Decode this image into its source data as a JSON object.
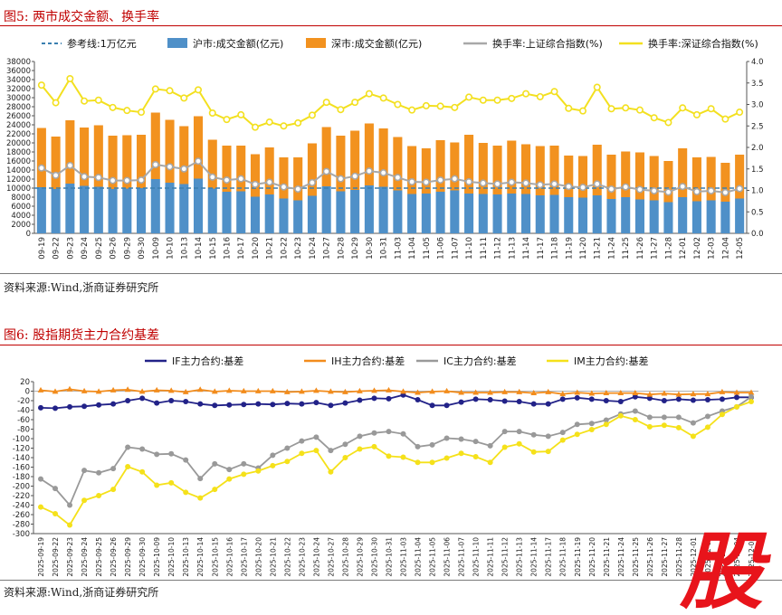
{
  "figure1": {
    "title": "图5:  两市成交金额、换手率",
    "source": "资料来源:Wind,浙商证券研究所"
  },
  "figure2": {
    "title": "图6:  股指期货主力合约基差",
    "source": "资料来源:Wind,浙商证券研究所"
  },
  "colors": {
    "sh_bar": "#4f90c8",
    "sz_bar": "#f2921f",
    "sh_turnover": "#a8a8a8",
    "sz_turnover": "#f3e01f",
    "ref_line": "#3a7fb0",
    "IF": "#222288",
    "IH": "#f28c1c",
    "IC": "#999999",
    "IM": "#f5e11a",
    "title_red": "#c00000"
  },
  "watermark_char": "股",
  "chart_data": [
    {
      "type": "bar",
      "stacked": true,
      "title": "两市成交金额、换手率",
      "legend": [
        "参考线:1万亿元",
        "沪市:成交金额(亿元)",
        "深市:成交金额(亿元)",
        "换手率:上证综合指数(%)",
        "换手率:深证综合指数(%)"
      ],
      "categories": [
        "09-19",
        "09-22",
        "09-23",
        "09-24",
        "09-25",
        "09-26",
        "09-29",
        "09-30",
        "10-09",
        "10-10",
        "10-13",
        "10-14",
        "10-15",
        "10-16",
        "10-17",
        "10-20",
        "10-21",
        "10-22",
        "10-23",
        "10-24",
        "10-27",
        "10-28",
        "10-29",
        "10-30",
        "10-31",
        "11-03",
        "11-04",
        "11-05",
        "11-06",
        "11-07",
        "11-10",
        "11-11",
        "11-12",
        "11-13",
        "11-14",
        "11-17",
        "11-18",
        "11-19",
        "11-20",
        "11-21",
        "11-24",
        "11-25",
        "11-26",
        "11-27",
        "11-28",
        "12-01",
        "12-02",
        "12-03",
        "12-04",
        "12-05"
      ],
      "ylim_left": [
        0,
        38000
      ],
      "yticks_left": [
        0,
        2000,
        4000,
        6000,
        8000,
        10000,
        12000,
        14000,
        16000,
        18000,
        20000,
        22000,
        24000,
        26000,
        28000,
        30000,
        32000,
        34000,
        36000,
        38000
      ],
      "ylim_right": [
        0,
        4.0
      ],
      "yticks_right": [
        "0.0",
        "0.5",
        "1.0",
        "1.5",
        "2.0",
        "2.5",
        "3.0",
        "3.5",
        "4.0"
      ],
      "reference_line": 10000,
      "series": [
        {
          "name": "沪市:成交金额(亿元)",
          "axis": "left",
          "values": [
            10200,
            9800,
            11000,
            10500,
            10300,
            9800,
            9900,
            10000,
            12000,
            11200,
            10900,
            12100,
            9900,
            9200,
            9300,
            8100,
            8600,
            7700,
            7300,
            8300,
            10400,
            9300,
            9600,
            10600,
            10300,
            9500,
            8700,
            8800,
            9200,
            9500,
            8800,
            8700,
            8600,
            8800,
            8700,
            8400,
            8500,
            8000,
            7900,
            8400,
            7600,
            8000,
            7500,
            7300,
            6900,
            8000,
            7100,
            7300,
            7000,
            7700
          ]
        },
        {
          "name": "深市:成交金额(亿元)",
          "axis": "left",
          "values": [
            13100,
            11600,
            14000,
            12900,
            13600,
            11800,
            11800,
            11800,
            14700,
            13900,
            12800,
            13800,
            10800,
            10200,
            10100,
            9400,
            10400,
            9100,
            9500,
            11600,
            13100,
            12300,
            13100,
            13700,
            12900,
            11800,
            10600,
            10000,
            11400,
            10600,
            13000,
            11300,
            10800,
            11700,
            11000,
            10900,
            10900,
            9200,
            9200,
            11200,
            9800,
            10100,
            10400,
            9800,
            9100,
            10800,
            9700,
            9600,
            8600,
            9700
          ]
        },
        {
          "name": "换手率:上证综合指数(%)",
          "axis": "right",
          "values": [
            1.52,
            1.35,
            1.58,
            1.32,
            1.3,
            1.23,
            1.23,
            1.24,
            1.6,
            1.55,
            1.5,
            1.68,
            1.31,
            1.24,
            1.27,
            1.14,
            1.19,
            1.08,
            1.03,
            1.18,
            1.44,
            1.27,
            1.33,
            1.45,
            1.41,
            1.3,
            1.2,
            1.19,
            1.24,
            1.27,
            1.2,
            1.17,
            1.15,
            1.19,
            1.17,
            1.13,
            1.15,
            1.09,
            1.07,
            1.15,
            1.03,
            1.08,
            1.02,
            0.99,
            0.96,
            1.09,
            0.97,
            0.99,
            0.95,
            1.04
          ]
        },
        {
          "name": "换手率:深证综合指数(%)",
          "axis": "right",
          "values": [
            3.45,
            3.04,
            3.6,
            3.08,
            3.1,
            2.93,
            2.86,
            2.82,
            3.36,
            3.32,
            3.15,
            3.34,
            2.8,
            2.65,
            2.76,
            2.47,
            2.59,
            2.5,
            2.57,
            2.75,
            3.05,
            2.88,
            3.05,
            3.25,
            3.15,
            3.0,
            2.87,
            2.97,
            2.96,
            2.93,
            3.17,
            3.1,
            3.1,
            3.14,
            3.25,
            3.18,
            3.3,
            2.91,
            2.85,
            3.4,
            2.9,
            2.92,
            2.87,
            2.69,
            2.58,
            2.92,
            2.76,
            2.9,
            2.66,
            2.82
          ]
        }
      ]
    },
    {
      "type": "line",
      "title": "股指期货主力合约基差",
      "legend": [
        "IF主力合约:基差",
        "IH主力合约:基差",
        "IC主力合约:基差",
        "IM主力合约:基差"
      ],
      "categories": [
        "2025-09-19",
        "2025-09-22",
        "2025-09-23",
        "2025-09-24",
        "2025-09-25",
        "2025-09-26",
        "2025-09-29",
        "2025-09-30",
        "2025-10-09",
        "2025-10-10",
        "2025-10-13",
        "2025-10-14",
        "2025-10-15",
        "2025-10-16",
        "2025-10-17",
        "2025-10-20",
        "2025-10-21",
        "2025-10-22",
        "2025-10-23",
        "2025-10-24",
        "2025-10-27",
        "2025-10-28",
        "2025-10-29",
        "2025-10-30",
        "2025-10-31",
        "2025-11-03",
        "2025-11-04",
        "2025-11-05",
        "2025-11-06",
        "2025-11-07",
        "2025-11-10",
        "2025-11-11",
        "2025-11-12",
        "2025-11-13",
        "2025-11-14",
        "2025-11-17",
        "2025-11-18",
        "2025-11-19",
        "2025-11-20",
        "2025-11-21",
        "2025-11-24",
        "2025-11-25",
        "2025-11-26",
        "2025-11-27",
        "2025-11-28",
        "2025-12-01",
        "2025-12-02",
        "2025-12-03",
        "2025-12-04",
        "2025-12-05"
      ],
      "ylim": [
        -300,
        20
      ],
      "yticks": [
        20,
        0,
        -20,
        -40,
        -60,
        -80,
        -100,
        -120,
        -140,
        -160,
        -180,
        -200,
        -220,
        -240,
        -260,
        -280,
        -300
      ],
      "series": [
        {
          "name": "IF主力合约:基差",
          "values": [
            -35,
            -36,
            -33,
            -32,
            -29,
            -27,
            -20,
            -15,
            -25,
            -20,
            -22,
            -27,
            -30,
            -29,
            -28,
            -27,
            -28,
            -26,
            -27,
            -24,
            -30,
            -25,
            -19,
            -15,
            -16,
            -8,
            -18,
            -30,
            -30,
            -23,
            -17,
            -18,
            -21,
            -22,
            -27,
            -27,
            -17,
            -14,
            -17,
            -20,
            -22,
            -12,
            -15,
            -20,
            -17,
            -19,
            -18,
            -17,
            -13,
            -13
          ]
        },
        {
          "name": "IH主力合约:基差",
          "values": [
            2,
            -1,
            4,
            0,
            -1,
            2,
            3,
            -1,
            2,
            1,
            -2,
            3,
            -1,
            1,
            0,
            0,
            0,
            -2,
            -1,
            1,
            -1,
            -2,
            0,
            1,
            2,
            -1,
            -3,
            -1,
            0,
            -3,
            -3,
            -3,
            -2,
            -2,
            -4,
            -2,
            -6,
            -3,
            -5,
            -4,
            -4,
            -4,
            -7,
            -5,
            -7,
            -6,
            -6,
            -2,
            -3,
            -3
          ]
        },
        {
          "name": "IC主力合约:基差",
          "values": [
            -185,
            -205,
            -240,
            -167,
            -172,
            -163,
            -118,
            -122,
            -133,
            -132,
            -145,
            -184,
            -153,
            -165,
            -153,
            -162,
            -135,
            -120,
            -105,
            -97,
            -125,
            -112,
            -95,
            -88,
            -85,
            -90,
            -117,
            -113,
            -99,
            -101,
            -106,
            -115,
            -85,
            -85,
            -92,
            -95,
            -87,
            -70,
            -68,
            -61,
            -48,
            -42,
            -55,
            -55,
            -55,
            -67,
            -53,
            -42,
            -33,
            -12
          ]
        },
        {
          "name": "IM主力合约:基差",
          "values": [
            -244,
            -258,
            -282,
            -230,
            -220,
            -207,
            -159,
            -170,
            -198,
            -193,
            -213,
            -225,
            -207,
            -185,
            -175,
            -168,
            -157,
            -148,
            -131,
            -125,
            -170,
            -140,
            -122,
            -117,
            -137,
            -139,
            -150,
            -150,
            -141,
            -131,
            -138,
            -150,
            -118,
            -111,
            -128,
            -127,
            -103,
            -91,
            -81,
            -70,
            -52,
            -60,
            -75,
            -72,
            -77,
            -95,
            -76,
            -49,
            -33,
            -22
          ]
        }
      ]
    }
  ]
}
